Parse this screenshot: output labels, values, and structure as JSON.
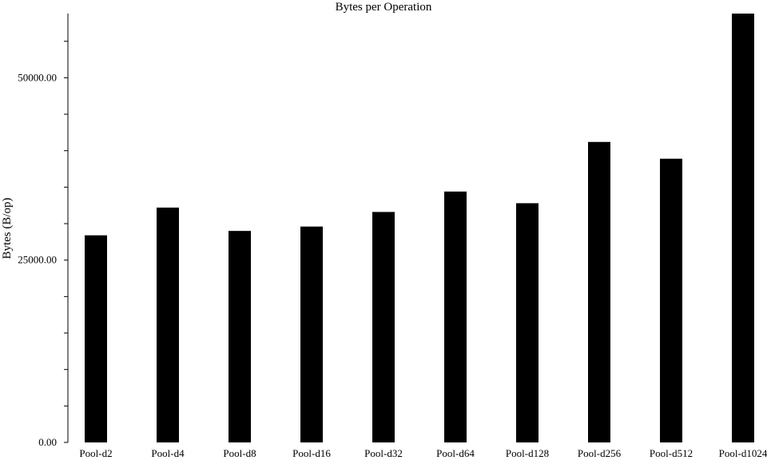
{
  "chart_data": {
    "type": "bar",
    "title": "Bytes per Operation",
    "xlabel": "",
    "ylabel": "Bytes (B/op)",
    "categories": [
      "Pool-d2",
      "Pool-d4",
      "Pool-d8",
      "Pool-d16",
      "Pool-d32",
      "Pool-d64",
      "Pool-d128",
      "Pool-d256",
      "Pool-d512",
      "Pool-d1024"
    ],
    "values": [
      28400,
      32200,
      29000,
      29600,
      31600,
      34400,
      32800,
      41200,
      38900,
      58800
    ],
    "ylim": [
      0,
      58800
    ],
    "yticks": [
      {
        "value": 0,
        "label": "0.00"
      },
      {
        "value": 5000,
        "label": ""
      },
      {
        "value": 10000,
        "label": ""
      },
      {
        "value": 15000,
        "label": ""
      },
      {
        "value": 20000,
        "label": ""
      },
      {
        "value": 25000,
        "label": "25000.00"
      },
      {
        "value": 30000,
        "label": ""
      },
      {
        "value": 35000,
        "label": ""
      },
      {
        "value": 40000,
        "label": ""
      },
      {
        "value": 45000,
        "label": ""
      },
      {
        "value": 50000,
        "label": "50000.00"
      },
      {
        "value": 55000,
        "label": ""
      }
    ],
    "grid": false,
    "legend": "none",
    "bar_color": "#000000"
  }
}
